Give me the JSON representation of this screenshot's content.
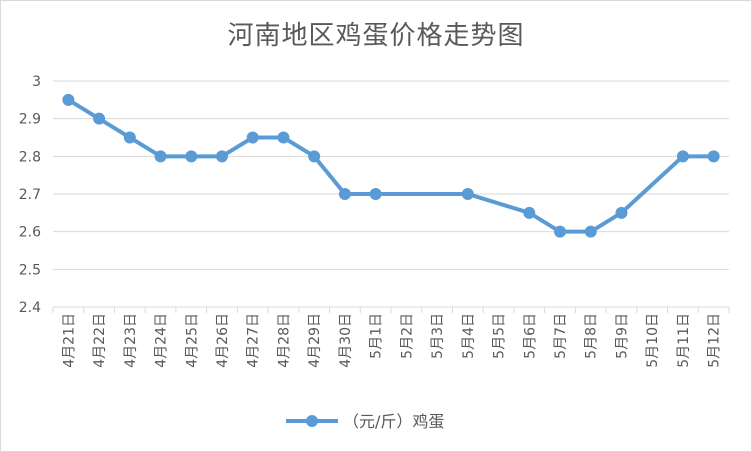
{
  "chart_data": {
    "type": "line",
    "title": "河南地区鸡蛋价格走势图",
    "categories": [
      "4月21日",
      "4月22日",
      "4月23日",
      "4月24日",
      "4月25日",
      "4月26日",
      "4月27日",
      "4月28日",
      "4月29日",
      "4月30日",
      "5月1日",
      "5月2日",
      "5月3日",
      "5月4日",
      "5月5日",
      "5月6日",
      "5月7日",
      "5月8日",
      "5月9日",
      "5月10日",
      "5月11日",
      "5月12日"
    ],
    "series": [
      {
        "name": "（元/斤）鸡蛋",
        "values": [
          2.95,
          2.9,
          2.85,
          2.8,
          2.8,
          2.8,
          2.85,
          2.85,
          2.8,
          2.7,
          2.7,
          null,
          null,
          2.7,
          null,
          2.65,
          2.6,
          2.6,
          2.65,
          null,
          2.8,
          2.8
        ],
        "color": "#5b9bd5"
      }
    ],
    "ylim": [
      2.4,
      3.0
    ],
    "yticks": [
      "2.4",
      "2.5",
      "2.6",
      "2.7",
      "2.8",
      "2.9",
      "3"
    ],
    "grid": true,
    "legend_position": "bottom"
  }
}
